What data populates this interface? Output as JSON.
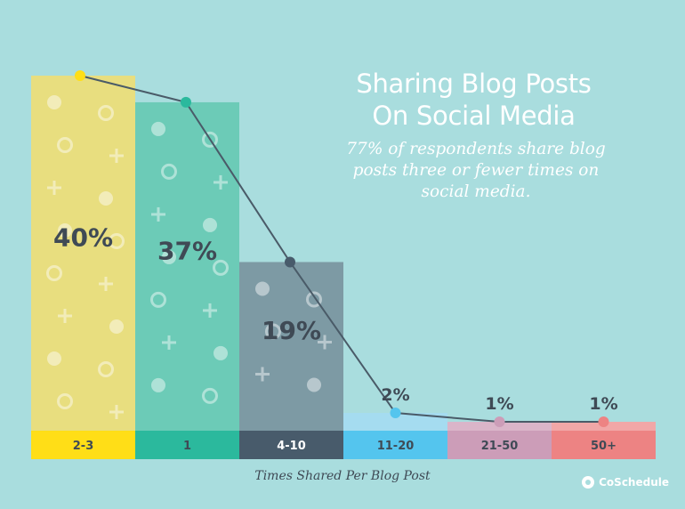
{
  "header": {
    "title_line1": "Sharing Blog Posts",
    "title_line2": "On Social Media",
    "subtitle_line1": "77% of respondents share blog",
    "subtitle_line2": "posts three or fewer times on",
    "subtitle_line3": "social media."
  },
  "footer": {
    "x_axis_title": "Times Shared Per  Blog Post",
    "brand": "CoSchedule"
  },
  "chart_data": {
    "type": "bar",
    "title": "Sharing Blog Posts On Social Media",
    "subtitle": "77% of respondents share blog posts three or fewer times on social media.",
    "xlabel": "Times Shared Per  Blog Post",
    "ylabel": "",
    "ylim": [
      0,
      40
    ],
    "categories": [
      "2-3",
      "1",
      "4-10",
      "11-20",
      "21-50",
      "50+"
    ],
    "values": [
      40,
      37,
      19,
      2,
      1,
      1
    ],
    "value_labels": [
      "40%",
      "37%",
      "19%",
      "2%",
      "1%",
      "1%"
    ],
    "overlay_line": true,
    "colors": {
      "bars": [
        "#e8de7f",
        "#6ccbb7",
        "#7d9aa4",
        "#a5dcf0",
        "#dab5c9",
        "#f1a7a7"
      ],
      "bands": [
        "#ffde17",
        "#2bb99d",
        "#485b6b",
        "#54c5ee",
        "#cc9db8",
        "#ed8383"
      ],
      "markers": [
        "#ffde17",
        "#2bb99d",
        "#485b6b",
        "#54c5ee",
        "#cc9db8",
        "#ed8383"
      ],
      "line": "#4a5b68",
      "label_text": "#3f4a55"
    }
  }
}
